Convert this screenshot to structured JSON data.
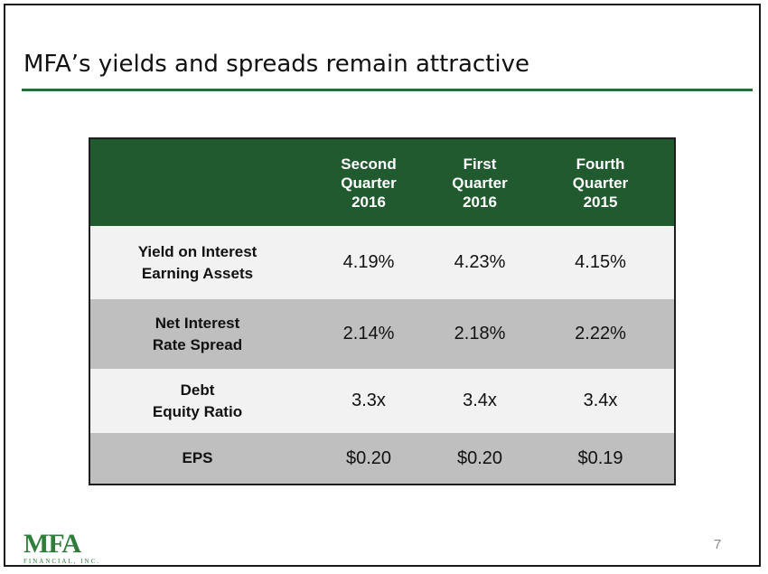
{
  "slide": {
    "title": "MFA’s yields and spreads remain attractive",
    "page_number": "7",
    "accent_color": "#2f6b36",
    "header_color": "#225a30"
  },
  "table": {
    "columns": [
      {
        "line1": "Second",
        "line2": "Quarter",
        "line3": "2016"
      },
      {
        "line1": "First",
        "line2": "Quarter",
        "line3": "2016"
      },
      {
        "line1": "Fourth",
        "line2": "Quarter",
        "line3": "2015"
      }
    ],
    "rows": [
      {
        "label1": "Yield on Interest",
        "label2": "Earning Assets",
        "values": [
          "4.19%",
          "4.23%",
          "4.15%"
        ]
      },
      {
        "label1": "Net Interest",
        "label2": "Rate Spread",
        "values": [
          "2.14%",
          "2.18%",
          "2.22%"
        ]
      },
      {
        "label1": "Debt",
        "label2": "Equity Ratio",
        "values": [
          "3.3x",
          "3.4x",
          "3.4x"
        ]
      },
      {
        "label1": "EPS",
        "label2": "",
        "values": [
          "$0.20",
          "$0.20",
          "$0.19"
        ]
      }
    ]
  },
  "logo": {
    "mark": "MFA",
    "subtitle": "FINANCIAL, INC."
  }
}
